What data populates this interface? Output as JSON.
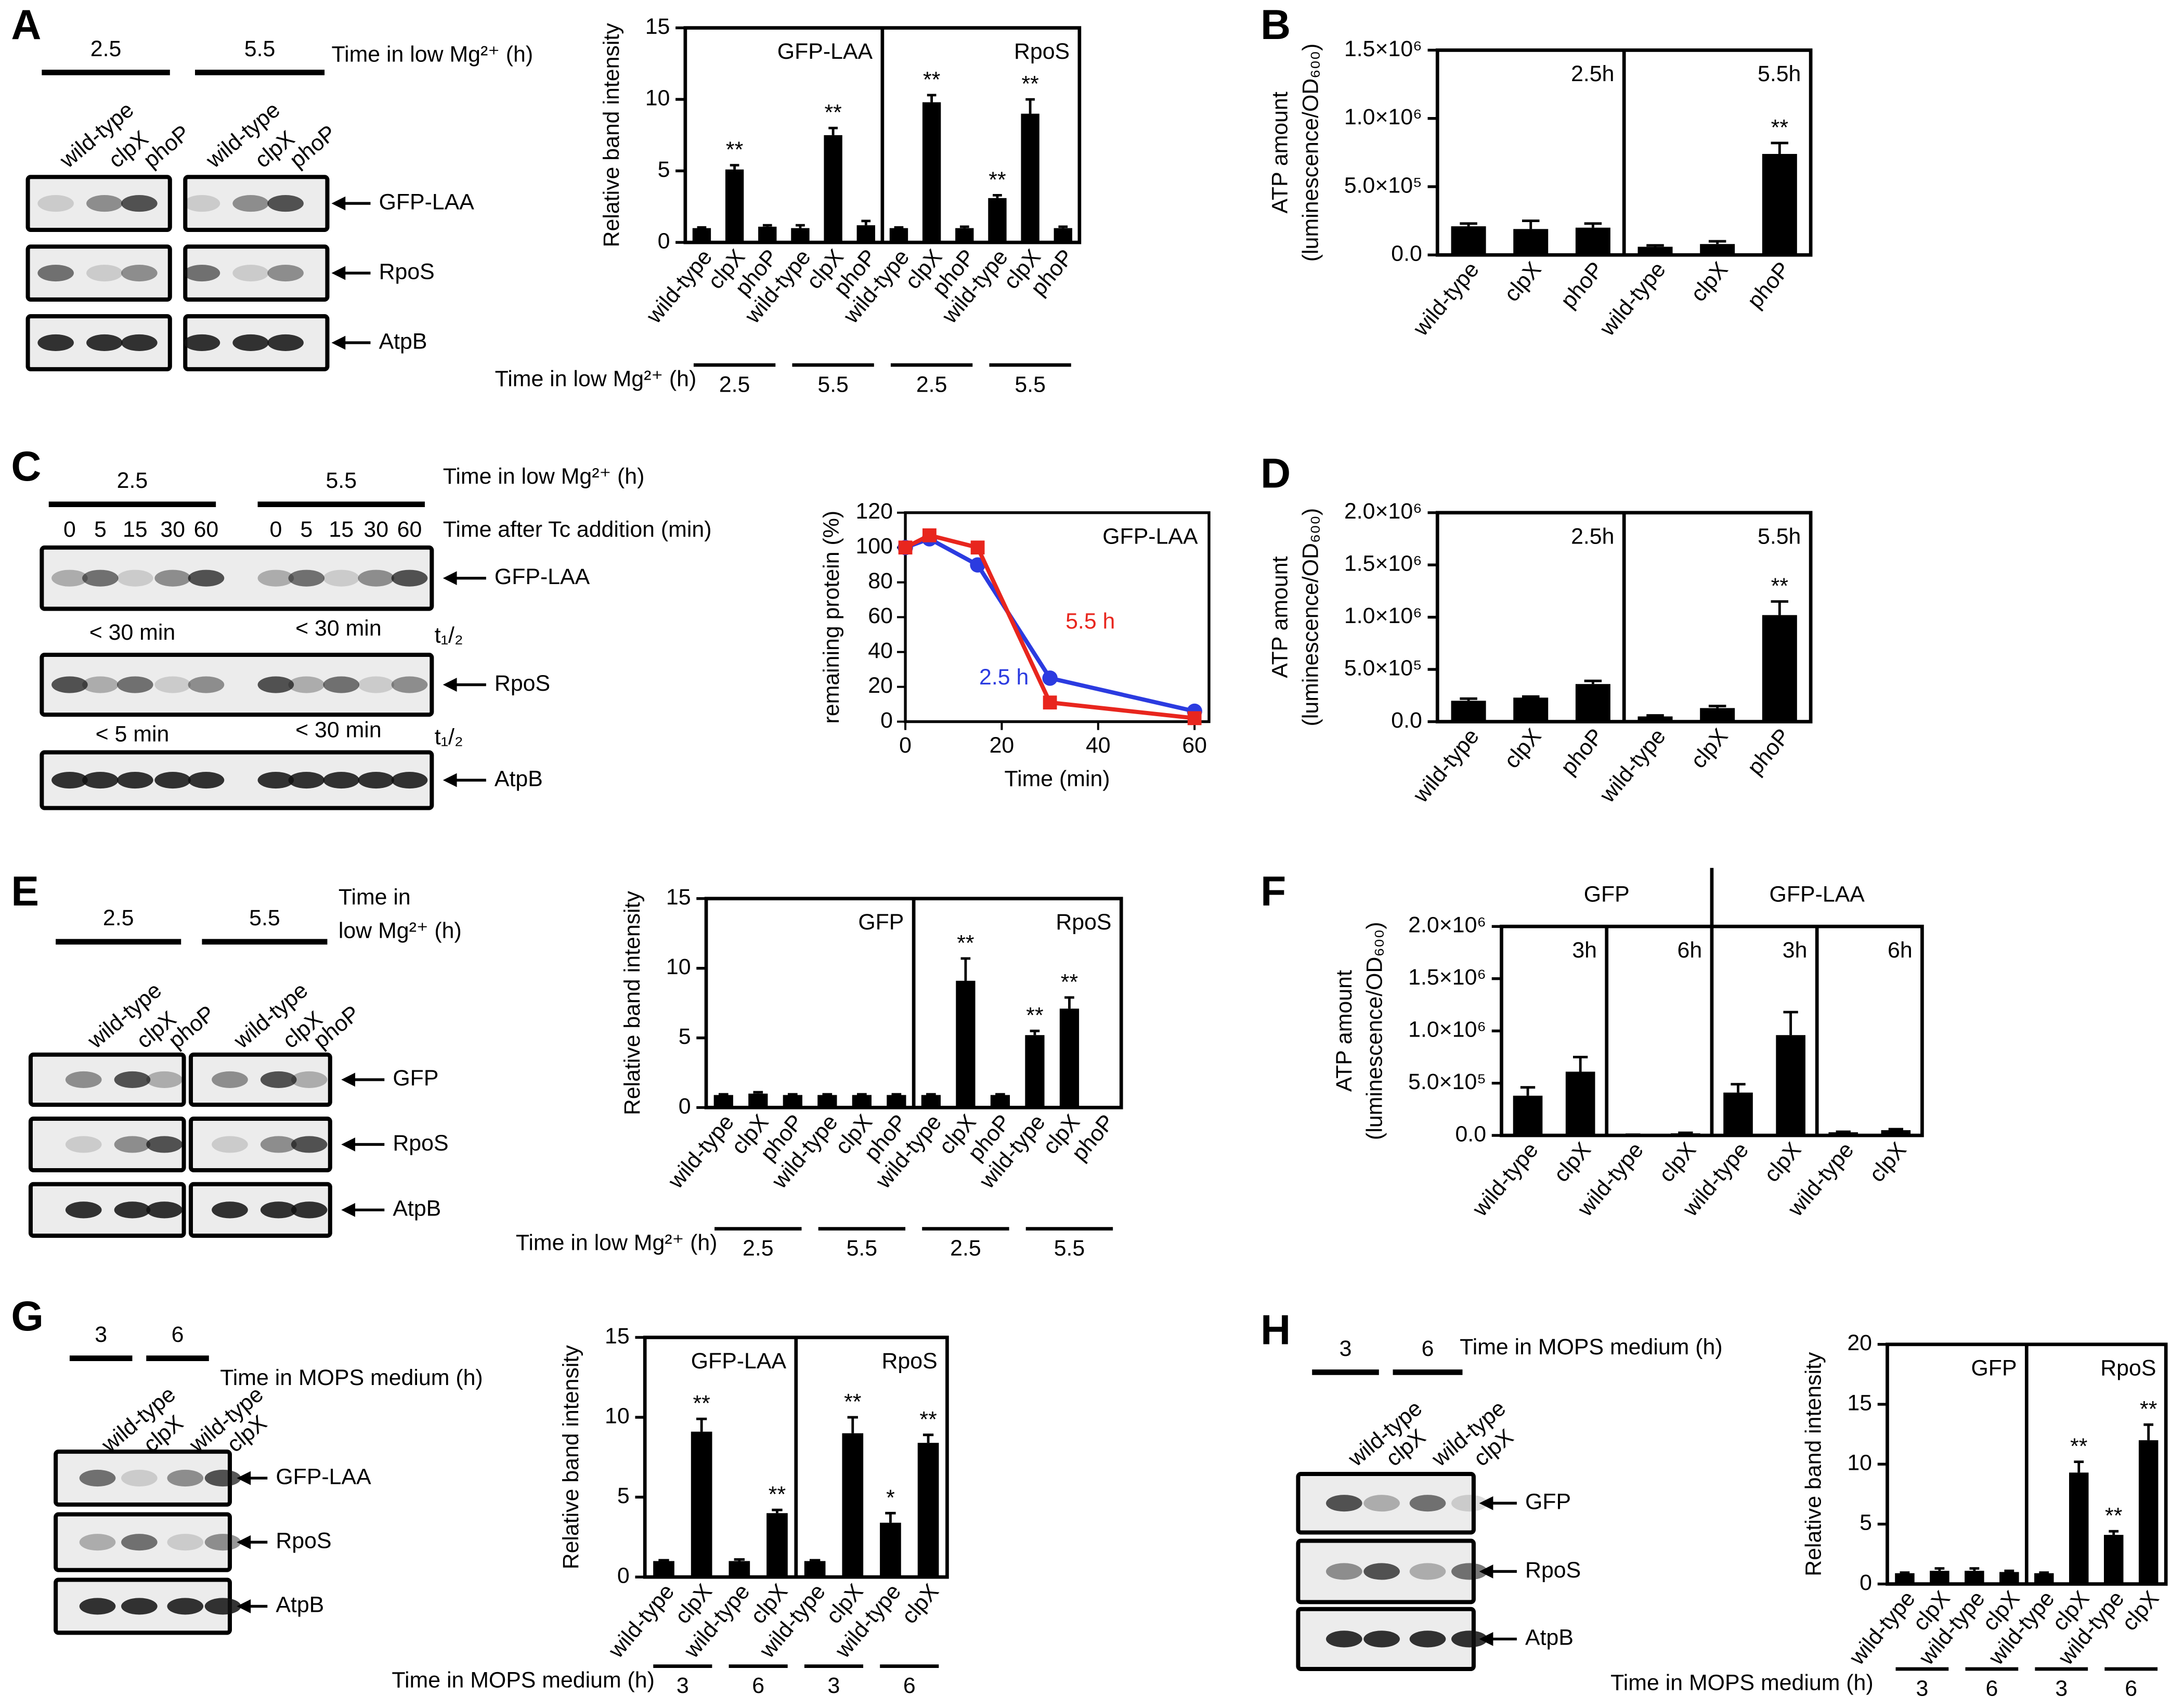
{
  "panel_letters": [
    "A",
    "B",
    "C",
    "D",
    "E",
    "F",
    "G",
    "H"
  ],
  "chart_data": [
    {
      "type": "bar",
      "ylabel": "Relative band intensity",
      "ylim": [
        0,
        15
      ],
      "yticks": [
        0,
        5,
        10,
        15
      ],
      "panel_labels": [
        "GFP-LAA",
        "RpoS"
      ],
      "categories": [
        "wild-type",
        "clpX",
        "phoP",
        "wild-type",
        "clpX",
        "phoP",
        "wild-type",
        "clpX",
        "phoP",
        "wild-type",
        "clpX",
        "phoP"
      ],
      "values": [
        1.0,
        5.1,
        1.1,
        1.0,
        7.5,
        1.2,
        1.0,
        9.8,
        1.0,
        3.1,
        9.0,
        1.0
      ],
      "errors": [
        0.05,
        0.3,
        0.1,
        0.2,
        0.5,
        0.3,
        0.05,
        0.5,
        0.1,
        0.2,
        1.0,
        0.1
      ],
      "significance": [
        null,
        "**",
        null,
        null,
        "**",
        null,
        null,
        "**",
        null,
        "**",
        "**",
        null
      ],
      "color": "#000000",
      "xgroup_title": "Time in low Mg²⁺ (h)",
      "xgroups": [
        "2.5",
        "5.5",
        "2.5",
        "5.5"
      ]
    },
    {
      "type": "bar",
      "ylabel": [
        "ATP amount",
        "(luminescence/OD₆₀₀)"
      ],
      "ylim": [
        0,
        1500000
      ],
      "yticks": [
        {
          "value": 0,
          "label": "0.0"
        },
        {
          "value": 500000,
          "label": "5.0×10⁵"
        },
        {
          "value": 1000000,
          "label": "1.0×10⁶"
        },
        {
          "value": 1500000,
          "label": "1.5×10⁶"
        }
      ],
      "panel_labels": [
        "2.5h",
        "5.5h"
      ],
      "categories": [
        "wild-type",
        "clpX",
        "phoP",
        "wild-type",
        "clpX",
        "phoP"
      ],
      "values": [
        210000,
        190000,
        200000,
        60000,
        80000,
        740000
      ],
      "errors": [
        20000,
        60000,
        30000,
        10000,
        20000,
        80000
      ],
      "significance": [
        null,
        null,
        null,
        null,
        null,
        "**"
      ],
      "color": "#000000"
    },
    {
      "type": "line",
      "title": "GFP-LAA",
      "xlabel": "Time (min)",
      "ylabel": "remaining protein (%)",
      "x": [
        0,
        5,
        15,
        30,
        60
      ],
      "xlim": [
        0,
        63
      ],
      "xticks": [
        0,
        20,
        40,
        60
      ],
      "ylim": [
        0,
        120
      ],
      "yticks": [
        0,
        20,
        40,
        60,
        80,
        100,
        120
      ],
      "series": [
        {
          "name": "2.5 h",
          "color": "#2b3be0",
          "values": [
            100,
            105,
            90,
            25,
            6
          ]
        },
        {
          "name": "5.5 h",
          "color": "#e8261e",
          "values": [
            100,
            107,
            100,
            11,
            2
          ]
        }
      ]
    },
    {
      "type": "bar",
      "ylabel": [
        "ATP amount",
        "(luminescence/OD₆₀₀)"
      ],
      "ylim": [
        0,
        2000000
      ],
      "yticks": [
        {
          "value": 0,
          "label": "0.0"
        },
        {
          "value": 500000,
          "label": "5.0×10⁵"
        },
        {
          "value": 1000000,
          "label": "1.0×10⁶"
        },
        {
          "value": 1500000,
          "label": "1.5×10⁶"
        },
        {
          "value": 2000000,
          "label": "2.0×10⁶"
        }
      ],
      "panel_labels": [
        "2.5h",
        "5.5h"
      ],
      "categories": [
        "wild-type",
        "clpX",
        "phoP",
        "wild-type",
        "clpX",
        "phoP"
      ],
      "values": [
        200000,
        230000,
        360000,
        50000,
        130000,
        1020000
      ],
      "errors": [
        20000,
        10000,
        30000,
        10000,
        20000,
        130000
      ],
      "significance": [
        null,
        null,
        null,
        null,
        null,
        "**"
      ],
      "color": "#000000"
    },
    {
      "type": "bar",
      "ylabel": "Relative band intensity",
      "ylim": [
        0,
        15
      ],
      "yticks": [
        0,
        5,
        10,
        15
      ],
      "panel_labels": [
        "GFP",
        "RpoS"
      ],
      "categories": [
        "wild-type",
        "clpX",
        "phoP",
        "wild-type",
        "clpX",
        "phoP",
        "wild-type",
        "clpX",
        "phoP",
        "wild-type",
        "clpX",
        "phoP"
      ],
      "values": [
        0.9,
        1.0,
        0.9,
        0.9,
        0.9,
        0.9,
        0.9,
        9.1,
        0.9,
        5.2,
        7.1,
        0
      ],
      "errors": [
        0.05,
        0.1,
        0.05,
        0.05,
        0.05,
        0.05,
        0.05,
        1.6,
        0.05,
        0.3,
        0.8,
        0
      ],
      "significance": [
        null,
        null,
        null,
        null,
        null,
        null,
        null,
        "**",
        null,
        "**",
        "**",
        null
      ],
      "color": "#000000",
      "xgroup_title": "Time in low Mg²⁺ (h)",
      "xgroups": [
        "2.5",
        "5.5",
        "2.5",
        "5.5"
      ]
    },
    {
      "type": "bar",
      "ylabel": [
        "ATP amount",
        "(luminescence/OD₆₀₀)"
      ],
      "ylim": [
        0,
        2000000
      ],
      "yticks": [
        {
          "value": 0,
          "label": "0.0"
        },
        {
          "value": 500000,
          "label": "5.0×10⁵"
        },
        {
          "value": 1000000,
          "label": "1.0×10⁶"
        },
        {
          "value": 1500000,
          "label": "1.5×10⁶"
        },
        {
          "value": 2000000,
          "label": "2.0×10⁶"
        }
      ],
      "group_labels": [
        "GFP",
        "GFP-LAA"
      ],
      "panel_labels": [
        "3h",
        "6h",
        "3h",
        "6h"
      ],
      "categories": [
        "wild-type",
        "clpX",
        "wild-type",
        "clpX",
        "wild-type",
        "clpX",
        "wild-type",
        "clpX"
      ],
      "values": [
        380000,
        610000,
        5000,
        20000,
        410000,
        960000,
        30000,
        50000
      ],
      "errors": [
        80000,
        140000,
        2000,
        5000,
        80000,
        220000,
        5000,
        10000
      ],
      "significance": [
        null,
        null,
        null,
        null,
        null,
        null,
        null,
        null
      ],
      "color": "#000000"
    },
    {
      "type": "bar",
      "ylabel": "Relative band intensity",
      "ylim": [
        0,
        15
      ],
      "yticks": [
        0,
        5,
        10,
        15
      ],
      "panel_labels": [
        "GFP-LAA",
        "RpoS"
      ],
      "categories": [
        "wild-type",
        "clpX",
        "wild-type",
        "clpX",
        "wild-type",
        "clpX",
        "wild-type",
        "clpX"
      ],
      "values": [
        1.0,
        9.1,
        1.0,
        4.0,
        1.0,
        9.0,
        3.4,
        8.4
      ],
      "errors": [
        0.05,
        0.8,
        0.1,
        0.2,
        0.05,
        1.0,
        0.6,
        0.5
      ],
      "significance": [
        null,
        "**",
        null,
        "**",
        null,
        "**",
        "*",
        "**"
      ],
      "color": "#000000",
      "xgroup_title": "Time in MOPS medium (h)",
      "xgroups": [
        "3",
        "6",
        "3",
        "6"
      ]
    },
    {
      "type": "bar",
      "ylabel": "Relative band intensity",
      "ylim": [
        0,
        20
      ],
      "yticks": [
        0,
        5,
        10,
        15,
        20
      ],
      "panel_labels": [
        "GFP",
        "RpoS"
      ],
      "categories": [
        "wild-type",
        "clpX",
        "wild-type",
        "clpX",
        "wild-type",
        "clpX",
        "wild-type",
        "clpX"
      ],
      "values": [
        0.9,
        1.1,
        1.1,
        1.0,
        0.9,
        9.3,
        4.1,
        12.0
      ],
      "errors": [
        0.05,
        0.2,
        0.2,
        0.1,
        0.05,
        0.9,
        0.3,
        1.3
      ],
      "significance": [
        null,
        null,
        null,
        null,
        null,
        "**",
        "**",
        "**"
      ],
      "color": "#000000",
      "xgroup_title": "Time in MOPS medium (h)",
      "xgroups": [
        "3",
        "6",
        "3",
        "6"
      ]
    }
  ],
  "blots": [
    {
      "times": [
        "2.5",
        "5.5"
      ],
      "time_title": "Time in low Mg²⁺ (h)",
      "lanes": [
        "wild-type",
        "clpX",
        "phoP",
        "wild-type",
        "clpX",
        "phoP"
      ],
      "bands": [
        "GFP-LAA",
        "RpoS",
        "AtpB"
      ]
    },
    {
      "times": [
        "2.5",
        "5.5"
      ],
      "time_title": "Time in low Mg²⁺ (h)",
      "minutes": [
        "0",
        "5",
        "15",
        "30",
        "60",
        "0",
        "5",
        "15",
        "30",
        "60"
      ],
      "minutes_title": "Time after Tc addition (min)",
      "bands": [
        "GFP-LAA",
        "RpoS",
        "AtpB"
      ],
      "half_lives": [
        [
          "< 30 min",
          "< 30 min",
          "t₁/₂"
        ],
        [
          "< 5 min",
          "< 30 min",
          "t₁/₂"
        ]
      ]
    },
    {
      "times": [
        "2.5",
        "5.5"
      ],
      "time_title": [
        "Time in",
        "low Mg²⁺ (h)"
      ],
      "lanes": [
        "wild-type",
        "clpX",
        "phoP",
        "wild-type",
        "clpX",
        "phoP"
      ],
      "bands": [
        "GFP",
        "RpoS",
        "AtpB"
      ]
    },
    {
      "times": [
        "3",
        "6"
      ],
      "time_title": "Time in MOPS medium (h)",
      "lanes": [
        "wild-type",
        "clpX",
        "wild-type",
        "clpX"
      ],
      "bands": [
        "GFP-LAA",
        "RpoS",
        "AtpB"
      ]
    },
    {
      "times": [
        "3",
        "6"
      ],
      "time_title": "Time in MOPS medium (h)",
      "lanes": [
        "wild-type",
        "clpX",
        "wild-type",
        "clpX"
      ],
      "bands": [
        "GFP",
        "RpoS",
        "AtpB"
      ]
    }
  ]
}
